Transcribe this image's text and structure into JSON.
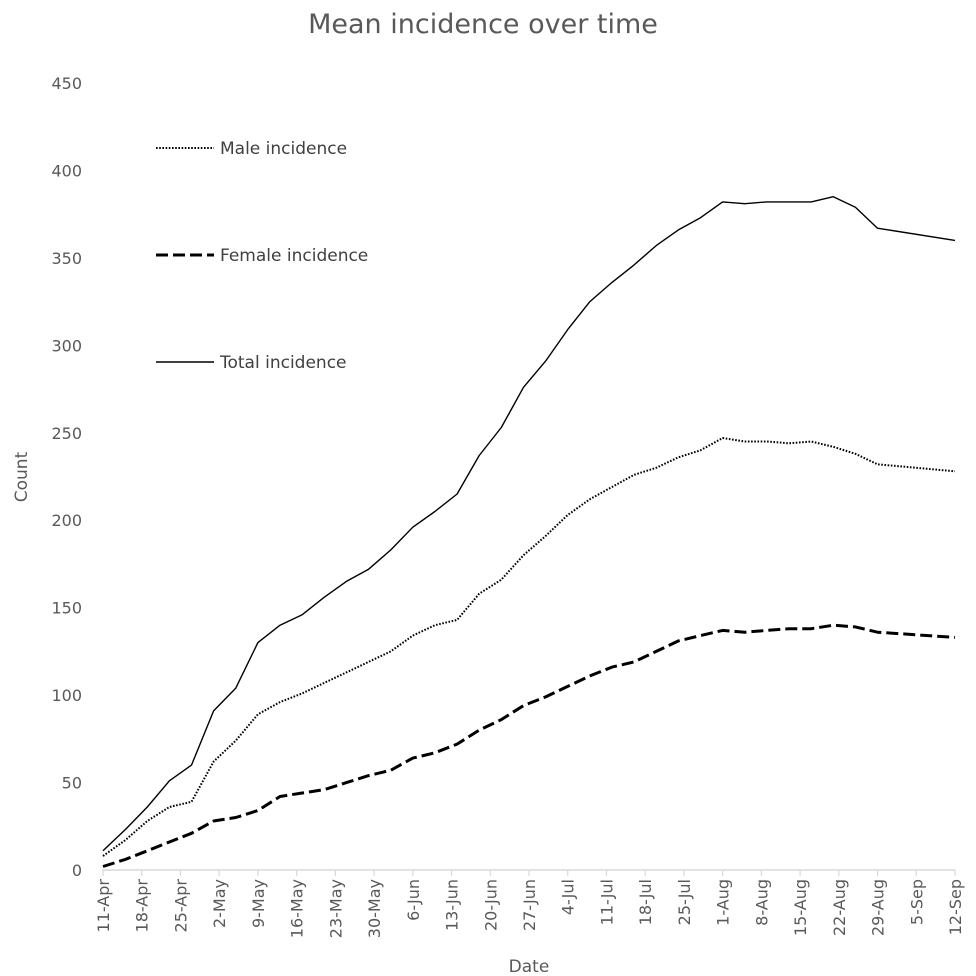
{
  "chart_data": {
    "type": "line",
    "title": "Mean incidence over time",
    "xlabel": "Date",
    "ylabel": "Count",
    "ylim": [
      0,
      450
    ],
    "yticks": [
      0,
      50,
      100,
      150,
      200,
      250,
      300,
      350,
      400,
      450
    ],
    "xlim": [
      "11-Apr",
      "12-Sep"
    ],
    "grid": false,
    "legend_position": "top-left",
    "x_tick_labels": [
      "11-Apr",
      "18-Apr",
      "25-Apr",
      "2-May",
      "9-May",
      "16-May",
      "23-May",
      "30-May",
      "6-Jun",
      "13-Jun",
      "20-Jun",
      "27-Jun",
      "4-Jul",
      "11-Jul",
      "18-Jul",
      "25-Jul",
      "1-Aug",
      "8-Aug",
      "15-Aug",
      "22-Aug",
      "29-Aug",
      "5-Sep",
      "12-Sep"
    ],
    "series": [
      {
        "name": "Male incidence",
        "style": "dotted",
        "color": "#000000",
        "values": [
          8,
          17,
          28,
          36,
          39,
          62,
          74,
          89,
          96,
          101,
          107,
          113,
          119,
          125,
          134,
          140,
          143,
          158,
          166,
          180,
          191,
          203,
          212,
          219,
          226,
          230,
          236,
          240,
          247,
          245,
          245,
          244,
          245,
          242,
          238,
          232,
          228
        ]
      },
      {
        "name": "Female incidence",
        "style": "dashed",
        "color": "#000000",
        "values": [
          2,
          6,
          11,
          16,
          21,
          28,
          30,
          34,
          42,
          44,
          46,
          50,
          54,
          57,
          64,
          67,
          72,
          80,
          86,
          94,
          99,
          105,
          111,
          116,
          119,
          125,
          131,
          134,
          137,
          136,
          137,
          138,
          138,
          140,
          139,
          136,
          133
        ]
      },
      {
        "name": "Total incidence",
        "style": "solid",
        "color": "#000000",
        "values": [
          11,
          23,
          36,
          51,
          60,
          91,
          104,
          130,
          140,
          146,
          156,
          165,
          172,
          183,
          196,
          205,
          215,
          237,
          253,
          276,
          291,
          309,
          325,
          336,
          346,
          357,
          366,
          373,
          382,
          381,
          382,
          382,
          382,
          385,
          379,
          367,
          360
        ]
      }
    ],
    "x_dates": [
      "11-Apr",
      "15-Apr",
      "19-Apr",
      "23-Apr",
      "27-Apr",
      "1-May",
      "5-May",
      "9-May",
      "13-May",
      "17-May",
      "21-May",
      "25-May",
      "29-May",
      "2-Jun",
      "6-Jun",
      "10-Jun",
      "14-Jun",
      "18-Jun",
      "22-Jun",
      "26-Jun",
      "30-Jun",
      "4-Jul",
      "8-Jul",
      "12-Jul",
      "16-Jul",
      "20-Jul",
      "24-Jul",
      "28-Jul",
      "1-Aug",
      "5-Aug",
      "9-Aug",
      "13-Aug",
      "17-Aug",
      "21-Aug",
      "25-Aug",
      "29-Aug",
      "12-Sep"
    ]
  }
}
